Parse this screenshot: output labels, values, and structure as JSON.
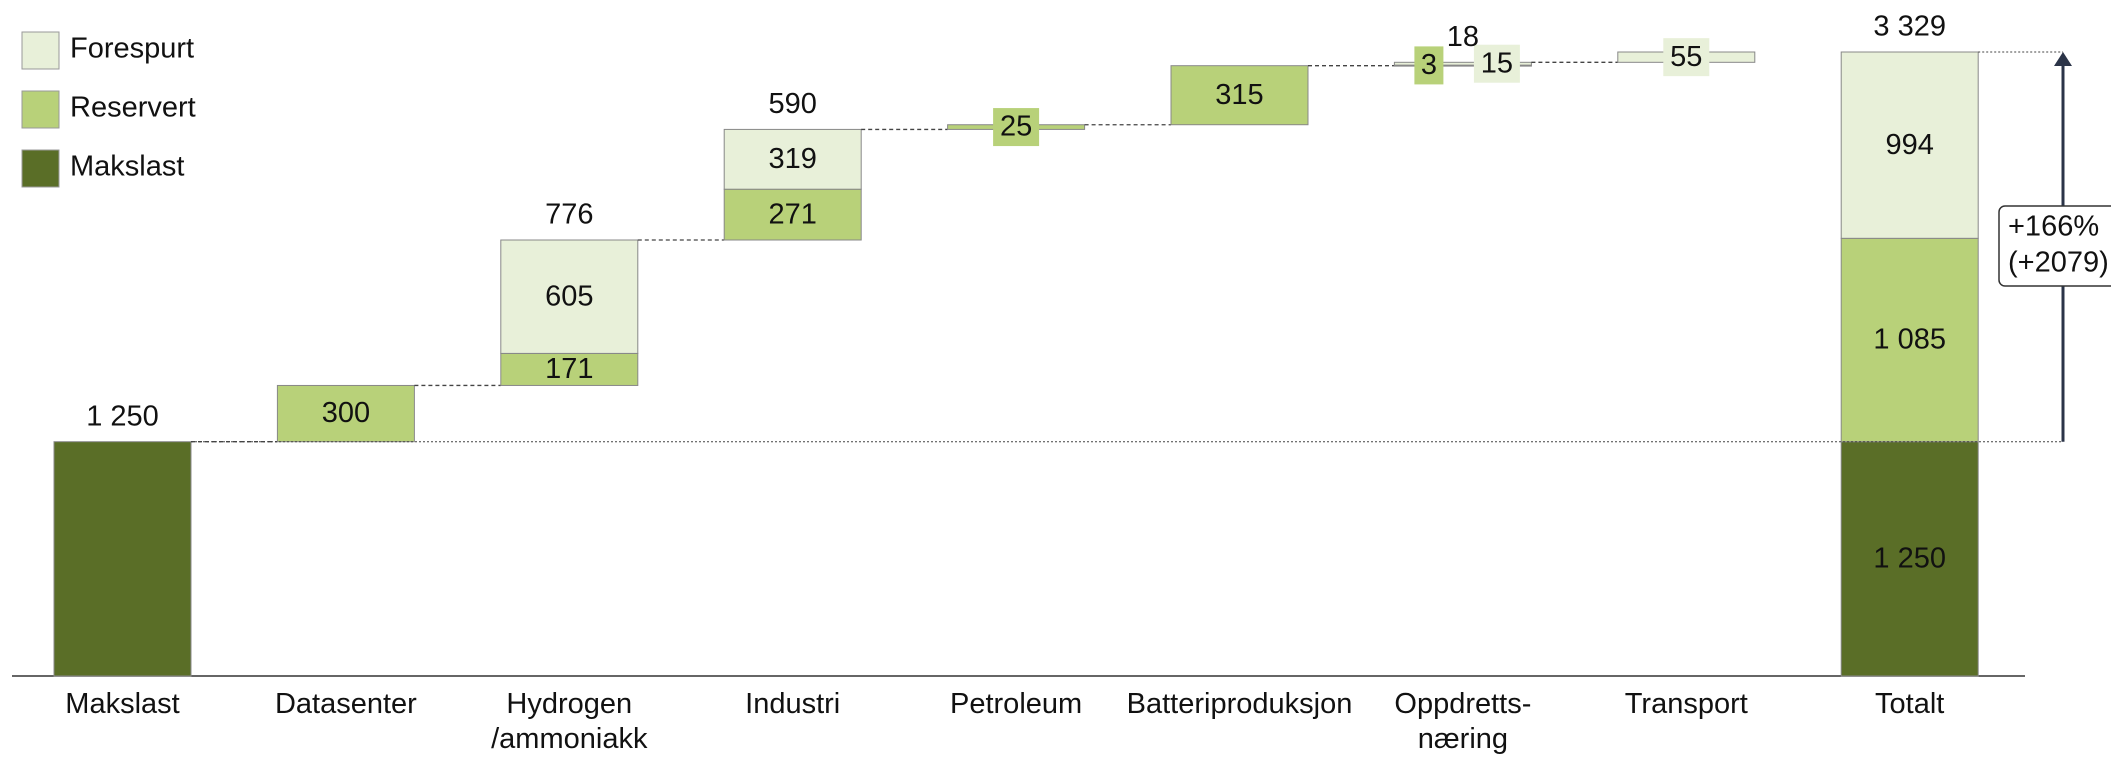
{
  "chart_data": {
    "type": "waterfall",
    "categories": [
      "Makslast",
      "Datasenter",
      "Hydrogen /ammoniakk",
      "Industri",
      "Petroleum",
      "Batteriproduksjon",
      "Oppdretts- næring",
      "Transport",
      "Totalt"
    ],
    "series": [
      {
        "name": "Forespurt",
        "color": "#e8f0d9",
        "values": [
          null,
          null,
          605,
          319,
          null,
          null,
          15,
          55,
          994
        ],
        "value_labels": [
          null,
          null,
          "605",
          "319",
          null,
          null,
          "15",
          "55",
          "994"
        ]
      },
      {
        "name": "Reservert",
        "color": "#b8d179",
        "values": [
          null,
          300,
          171,
          271,
          25,
          315,
          3,
          null,
          1085
        ],
        "value_labels": [
          null,
          "300",
          "171",
          "271",
          "25",
          "315",
          "3",
          null,
          "1 085"
        ]
      },
      {
        "name": "Makslast",
        "color": "#5a6e27",
        "values": [
          1250,
          null,
          null,
          null,
          null,
          null,
          null,
          null,
          1250
        ],
        "value_labels": [
          null,
          null,
          null,
          null,
          null,
          null,
          null,
          null,
          "1 250"
        ]
      }
    ],
    "totals": [
      1250,
      null,
      776,
      590,
      null,
      null,
      18,
      null,
      3329
    ],
    "total_labels": [
      "1 250",
      null,
      "776",
      "590",
      null,
      null,
      "18",
      null,
      "3 329"
    ],
    "annotation": [
      "+166%",
      "(+2079)"
    ],
    "legend": "top-left"
  }
}
